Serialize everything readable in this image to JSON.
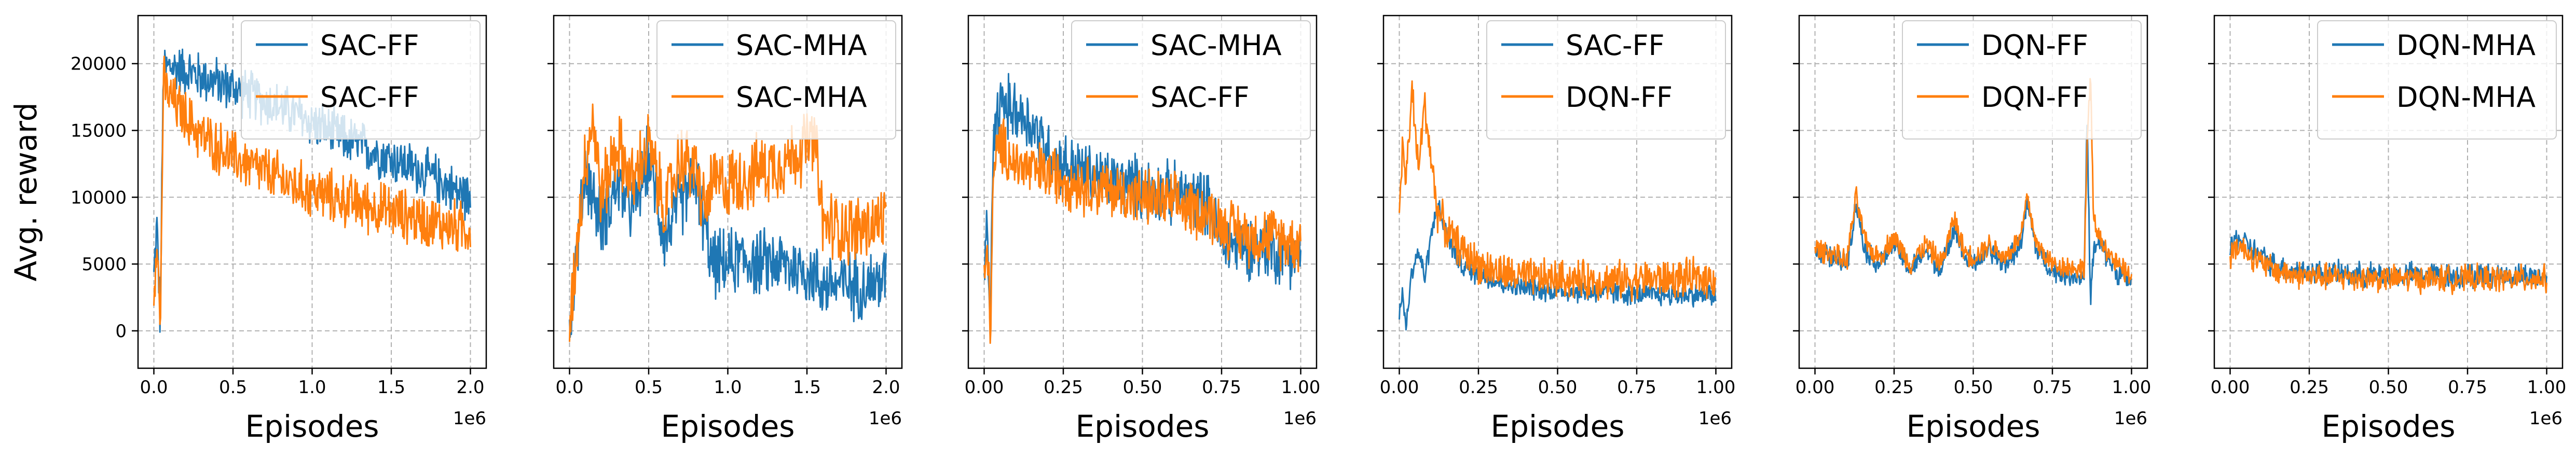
{
  "figure": {
    "ylabel": "Avg. reward",
    "xlabel": "Episodes",
    "colors": {
      "series1": "#1f77b4",
      "series2": "#ff7f0e",
      "grid": "#b0b0b0"
    }
  },
  "chart_data": [
    {
      "type": "line",
      "xlabel": "Episodes",
      "ylabel": "Avg. reward",
      "x_offset_label": "1e6",
      "xlim": [
        -0.1,
        2.1
      ],
      "ylim": [
        -2800,
        23600
      ],
      "xticks": [
        0.0,
        0.5,
        1.0,
        1.5,
        2.0
      ],
      "xtick_labels": [
        "0.0",
        "0.5",
        "1.0",
        "1.5",
        "2.0"
      ],
      "yticks": [
        0,
        5000,
        10000,
        15000,
        20000
      ],
      "ytick_labels": [
        "0",
        "5000",
        "10000",
        "15000",
        "20000"
      ],
      "show_yticklabels": true,
      "grid": true,
      "legend": "upper right",
      "series": [
        {
          "name": "SAC-FF",
          "color": "#1f77b4",
          "x": [
            0,
            0.02,
            0.04,
            0.06,
            0.1,
            0.2,
            0.3,
            0.4,
            0.5,
            0.6,
            0.7,
            0.8,
            0.9,
            1.0,
            1.1,
            1.2,
            1.3,
            1.4,
            1.5,
            1.6,
            1.7,
            1.8,
            1.9,
            2.0
          ],
          "y": [
            4000,
            8000,
            500,
            19500,
            19800,
            19500,
            19000,
            18600,
            18200,
            17700,
            17200,
            16700,
            16200,
            15600,
            15000,
            14400,
            13900,
            13400,
            12900,
            12400,
            11900,
            11300,
            10500,
            10000
          ],
          "noise": 2200
        },
        {
          "name": "SAC-FF",
          "color": "#ff7f0e",
          "x": [
            0,
            0.02,
            0.04,
            0.06,
            0.1,
            0.2,
            0.3,
            0.4,
            0.5,
            0.6,
            0.7,
            0.8,
            0.9,
            1.0,
            1.1,
            1.2,
            1.3,
            1.4,
            1.5,
            1.6,
            1.7,
            1.8,
            1.9,
            2.0
          ],
          "y": [
            3000,
            7500,
            -300,
            18500,
            17500,
            16000,
            14600,
            13800,
            13000,
            12400,
            11900,
            11300,
            10800,
            10400,
            10100,
            9800,
            9500,
            9200,
            8900,
            8600,
            8300,
            8000,
            7800,
            7600
          ],
          "noise": 2400
        }
      ]
    },
    {
      "type": "line",
      "xlabel": "Episodes",
      "ylabel": "",
      "x_offset_label": "1e6",
      "xlim": [
        -0.1,
        2.1
      ],
      "ylim": [
        -2800,
        23600
      ],
      "xticks": [
        0.0,
        0.5,
        1.0,
        1.5,
        2.0
      ],
      "xtick_labels": [
        "0.0",
        "0.5",
        "1.0",
        "1.5",
        "2.0"
      ],
      "yticks": [
        0,
        5000,
        10000,
        15000,
        20000
      ],
      "ytick_labels": [
        "0",
        "5000",
        "10000",
        "15000",
        "20000"
      ],
      "show_yticklabels": false,
      "grid": true,
      "legend": "upper right",
      "series": [
        {
          "name": "SAC-MHA",
          "color": "#1f77b4",
          "x": [
            0,
            0.05,
            0.1,
            0.2,
            0.3,
            0.4,
            0.5,
            0.6,
            0.7,
            0.8,
            0.85,
            0.9,
            1.0,
            1.1,
            1.2,
            1.3,
            1.4,
            1.5,
            1.55,
            1.6,
            1.7,
            1.8,
            1.9,
            2.0
          ],
          "y": [
            500,
            6000,
            12000,
            8000,
            11000,
            9000,
            13000,
            7000,
            9500,
            11500,
            8000,
            5000,
            5000,
            5500,
            5000,
            5200,
            4800,
            4500,
            4000,
            3500,
            3500,
            3400,
            3500,
            3800
          ],
          "noise": 3000
        },
        {
          "name": "SAC-MHA",
          "color": "#ff7f0e",
          "x": [
            0,
            0.05,
            0.1,
            0.15,
            0.2,
            0.3,
            0.4,
            0.5,
            0.6,
            0.7,
            0.8,
            0.85,
            0.9,
            1.0,
            1.1,
            1.2,
            1.3,
            1.4,
            1.5,
            1.55,
            1.6,
            1.7,
            1.8,
            1.9,
            2.0
          ],
          "y": [
            500,
            7000,
            13000,
            16000,
            10000,
            14000,
            11000,
            14000,
            9000,
            13000,
            12000,
            9000,
            11000,
            11000,
            11500,
            12000,
            12500,
            13000,
            14000,
            14200,
            8000,
            7800,
            7500,
            7800,
            8500
          ],
          "noise": 3200
        }
      ]
    },
    {
      "type": "line",
      "xlabel": "Episodes",
      "ylabel": "",
      "x_offset_label": "1e6",
      "xlim": [
        -0.05,
        1.05
      ],
      "ylim": [
        -2800,
        23600
      ],
      "xticks": [
        0.0,
        0.25,
        0.5,
        0.75,
        1.0
      ],
      "xtick_labels": [
        "0.00",
        "0.25",
        "0.50",
        "0.75",
        "1.00"
      ],
      "yticks": [
        0,
        5000,
        10000,
        15000,
        20000
      ],
      "ytick_labels": [
        "0",
        "5000",
        "10000",
        "15000",
        "20000"
      ],
      "show_yticklabels": false,
      "grid": true,
      "legend": "upper right",
      "series": [
        {
          "name": "SAC-MHA",
          "color": "#1f77b4",
          "x": [
            0,
            0.01,
            0.02,
            0.03,
            0.05,
            0.1,
            0.15,
            0.2,
            0.25,
            0.3,
            0.35,
            0.4,
            0.45,
            0.5,
            0.55,
            0.6,
            0.65,
            0.7,
            0.75,
            0.8,
            0.85,
            0.9,
            0.95,
            1.0
          ],
          "y": [
            4000,
            7000,
            1500,
            14000,
            17000,
            16500,
            15500,
            13500,
            12500,
            12000,
            11500,
            11200,
            11000,
            10700,
            10500,
            10200,
            10000,
            9800,
            6500,
            6500,
            6300,
            6000,
            5800,
            5700
          ],
          "noise": 2800
        },
        {
          "name": "SAC-FF",
          "color": "#ff7f0e",
          "x": [
            0,
            0.01,
            0.02,
            0.03,
            0.05,
            0.1,
            0.15,
            0.2,
            0.25,
            0.3,
            0.35,
            0.4,
            0.45,
            0.5,
            0.55,
            0.6,
            0.65,
            0.7,
            0.75,
            0.8,
            0.85,
            0.9,
            0.95,
            1.0
          ],
          "y": [
            3000,
            6500,
            500,
            12000,
            14000,
            12500,
            12000,
            11800,
            11500,
            11000,
            10800,
            10500,
            10200,
            10000,
            9800,
            9500,
            9200,
            9000,
            8000,
            7500,
            7000,
            7200,
            6800,
            6600
          ],
          "noise": 2600
        }
      ]
    },
    {
      "type": "line",
      "xlabel": "Episodes",
      "ylabel": "",
      "x_offset_label": "1e6",
      "xlim": [
        -0.05,
        1.05
      ],
      "ylim": [
        -2800,
        23600
      ],
      "xticks": [
        0.0,
        0.25,
        0.5,
        0.75,
        1.0
      ],
      "xtick_labels": [
        "0.00",
        "0.25",
        "0.50",
        "0.75",
        "1.00"
      ],
      "yticks": [
        0,
        5000,
        10000,
        15000,
        20000
      ],
      "ytick_labels": [
        "0",
        "5000",
        "10000",
        "15000",
        "20000"
      ],
      "show_yticklabels": false,
      "grid": true,
      "legend": "upper right",
      "series": [
        {
          "name": "SAC-FF",
          "color": "#1f77b4",
          "x": [
            0,
            0.01,
            0.02,
            0.04,
            0.06,
            0.08,
            0.1,
            0.12,
            0.15,
            0.2,
            0.25,
            0.3,
            0.35,
            0.4,
            0.5,
            0.6,
            0.7,
            0.8,
            0.9,
            1.0
          ],
          "y": [
            1500,
            3000,
            200,
            4500,
            6000,
            4000,
            7000,
            9500,
            7000,
            4800,
            4200,
            3800,
            3400,
            3200,
            3000,
            2900,
            2800,
            2700,
            2700,
            2700
          ],
          "noise": 1000
        },
        {
          "name": "DQN-FF",
          "color": "#ff7f0e",
          "x": [
            0,
            0.01,
            0.02,
            0.04,
            0.06,
            0.08,
            0.1,
            0.12,
            0.15,
            0.2,
            0.25,
            0.3,
            0.35,
            0.4,
            0.5,
            0.6,
            0.7,
            0.8,
            0.9,
            1.0
          ],
          "y": [
            8000,
            14000,
            11000,
            18000,
            12000,
            17000,
            13000,
            9000,
            7500,
            6000,
            5000,
            4500,
            4200,
            4000,
            3900,
            3800,
            3800,
            3900,
            3900,
            4000
          ],
          "noise": 1700
        }
      ]
    },
    {
      "type": "line",
      "xlabel": "Episodes",
      "ylabel": "",
      "x_offset_label": "1e6",
      "xlim": [
        -0.05,
        1.05
      ],
      "ylim": [
        -2800,
        23600
      ],
      "xticks": [
        0.0,
        0.25,
        0.5,
        0.75,
        1.0
      ],
      "xtick_labels": [
        "0.00",
        "0.25",
        "0.50",
        "0.75",
        "1.00"
      ],
      "yticks": [
        0,
        5000,
        10000,
        15000,
        20000
      ],
      "ytick_labels": [
        "0",
        "5000",
        "10000",
        "15000",
        "20000"
      ],
      "show_yticklabels": false,
      "grid": true,
      "legend": "upper right",
      "series": [
        {
          "name": "DQN-FF",
          "color": "#1f77b4",
          "x": [
            0,
            0.05,
            0.1,
            0.13,
            0.16,
            0.2,
            0.25,
            0.3,
            0.35,
            0.4,
            0.44,
            0.47,
            0.5,
            0.55,
            0.6,
            0.65,
            0.67,
            0.7,
            0.75,
            0.8,
            0.85,
            0.86,
            0.87,
            0.88,
            0.9,
            0.95,
            1.0
          ],
          "y": [
            6000,
            5500,
            5000,
            9500,
            6000,
            5000,
            6500,
            4500,
            6000,
            4500,
            8000,
            5500,
            5000,
            6000,
            5000,
            6500,
            9500,
            6000,
            4500,
            4200,
            4000,
            16000,
            2000,
            6000,
            6500,
            4500,
            3500
          ],
          "noise": 1000
        },
        {
          "name": "DQN-FF",
          "color": "#ff7f0e",
          "x": [
            0,
            0.05,
            0.1,
            0.13,
            0.16,
            0.2,
            0.25,
            0.3,
            0.35,
            0.4,
            0.44,
            0.47,
            0.5,
            0.55,
            0.6,
            0.65,
            0.67,
            0.7,
            0.75,
            0.8,
            0.85,
            0.86,
            0.87,
            0.88,
            0.9,
            0.95,
            1.0
          ],
          "y": [
            6200,
            5800,
            5200,
            10000,
            6500,
            5500,
            7000,
            5000,
            6500,
            5000,
            8500,
            6000,
            5500,
            6500,
            5500,
            7000,
            10000,
            6500,
            5000,
            4800,
            4600,
            14000,
            19500,
            8000,
            7000,
            5000,
            4000
          ],
          "noise": 1000
        }
      ]
    },
    {
      "type": "line",
      "xlabel": "Episodes",
      "ylabel": "",
      "x_offset_label": "1e6",
      "xlim": [
        -0.05,
        1.05
      ],
      "ylim": [
        -2800,
        23600
      ],
      "xticks": [
        0.0,
        0.25,
        0.5,
        0.75,
        1.0
      ],
      "xtick_labels": [
        "0.00",
        "0.25",
        "0.50",
        "0.75",
        "1.00"
      ],
      "yticks": [
        0,
        5000,
        10000,
        15000,
        20000
      ],
      "ytick_labels": [
        "0",
        "5000",
        "10000",
        "15000",
        "20000"
      ],
      "show_yticklabels": false,
      "grid": true,
      "legend": "upper right",
      "series": [
        {
          "name": "DQN-MHA",
          "color": "#1f77b4",
          "x": [
            0,
            0.02,
            0.05,
            0.1,
            0.15,
            0.2,
            0.3,
            0.4,
            0.5,
            0.6,
            0.7,
            0.8,
            0.9,
            1.0
          ],
          "y": [
            6000,
            7000,
            6500,
            5500,
            4800,
            4500,
            4300,
            4200,
            4200,
            4200,
            4100,
            4100,
            4100,
            4100
          ],
          "noise": 1100
        },
        {
          "name": "DQN-MHA",
          "color": "#ff7f0e",
          "x": [
            0,
            0.02,
            0.05,
            0.1,
            0.15,
            0.2,
            0.3,
            0.4,
            0.5,
            0.6,
            0.7,
            0.8,
            0.9,
            1.0
          ],
          "y": [
            5500,
            6500,
            6000,
            5000,
            4500,
            4200,
            4000,
            4000,
            3900,
            3900,
            3900,
            3900,
            3900,
            3900
          ],
          "noise": 1200
        }
      ]
    }
  ]
}
